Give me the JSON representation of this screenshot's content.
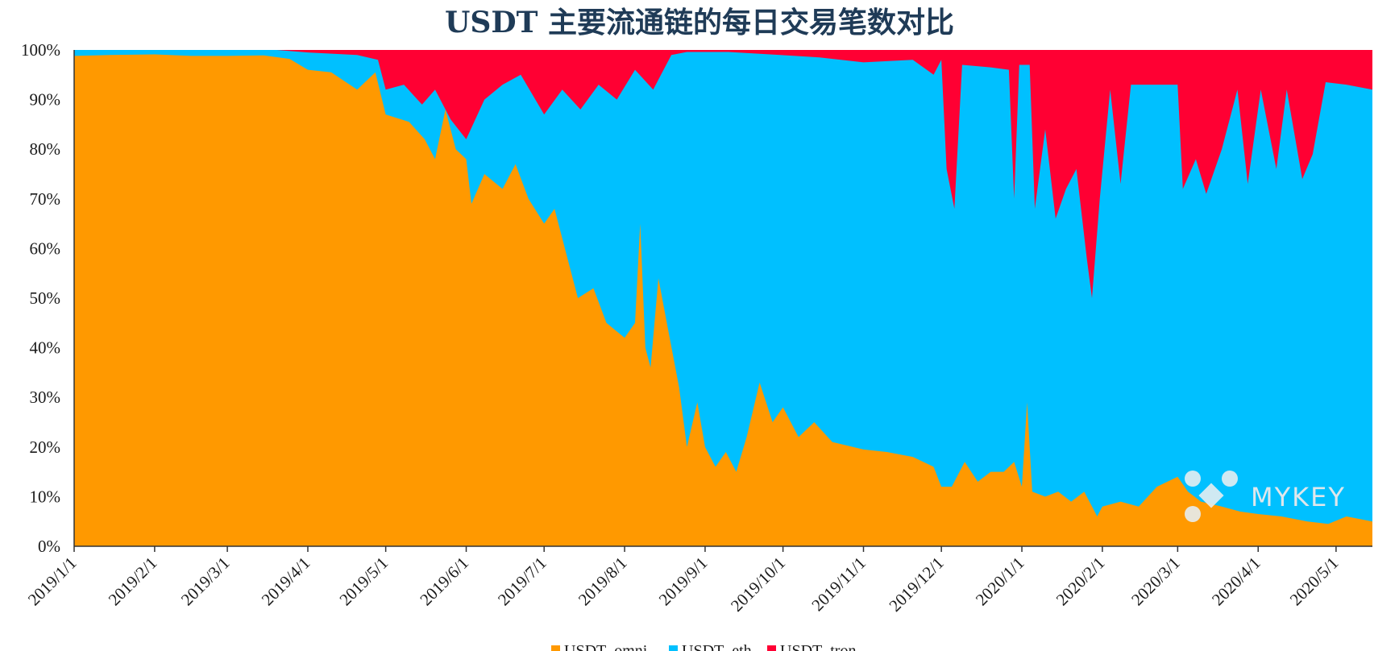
{
  "chart_data": {
    "type": "area",
    "stacked": true,
    "normalized": true,
    "title": "USDT 主要流通链的每日交易笔数对比",
    "xlabel": "",
    "ylabel": "",
    "ylim": [
      0,
      100
    ],
    "xlim": [
      "2019-01-01",
      "2020-05-15"
    ],
    "y_ticks": [
      "0%",
      "10%",
      "20%",
      "30%",
      "40%",
      "50%",
      "60%",
      "70%",
      "80%",
      "90%",
      "100%"
    ],
    "x_ticks": [
      {
        "date": "2019-01-01",
        "label": "2019/1/1"
      },
      {
        "date": "2019-02-01",
        "label": "2019/2/1"
      },
      {
        "date": "2019-03-01",
        "label": "2019/3/1"
      },
      {
        "date": "2019-04-01",
        "label": "2019/4/1"
      },
      {
        "date": "2019-05-01",
        "label": "2019/5/1"
      },
      {
        "date": "2019-06-01",
        "label": "2019/6/1"
      },
      {
        "date": "2019-07-01",
        "label": "2019/7/1"
      },
      {
        "date": "2019-08-01",
        "label": "2019/8/1"
      },
      {
        "date": "2019-09-01",
        "label": "2019/9/1"
      },
      {
        "date": "2019-10-01",
        "label": "2019/10/1"
      },
      {
        "date": "2019-11-01",
        "label": "2019/11/1"
      },
      {
        "date": "2019-12-01",
        "label": "2019/12/1"
      },
      {
        "date": "2020-01-01",
        "label": "2020/1/1"
      },
      {
        "date": "2020-02-01",
        "label": "2020/2/1"
      },
      {
        "date": "2020-03-01",
        "label": "2020/3/1"
      },
      {
        "date": "2020-04-01",
        "label": "2020/4/1"
      },
      {
        "date": "2020-05-01",
        "label": "2020/5/1"
      }
    ],
    "legend_placement": "bottom-center",
    "series": [
      {
        "name": "USDT_omni",
        "color": "#ff9900",
        "points": [
          [
            "2019-01-01",
            98.8
          ],
          [
            "2019-01-15",
            99.0
          ],
          [
            "2019-02-01",
            99.1
          ],
          [
            "2019-02-15",
            98.8
          ],
          [
            "2019-03-01",
            98.8
          ],
          [
            "2019-03-15",
            98.9
          ],
          [
            "2019-03-25",
            98.2
          ],
          [
            "2019-04-01",
            96.0
          ],
          [
            "2019-04-10",
            95.5
          ],
          [
            "2019-04-20",
            92.0
          ],
          [
            "2019-04-27",
            95.5
          ],
          [
            "2019-05-01",
            87.0
          ],
          [
            "2019-05-10",
            85.5
          ],
          [
            "2019-05-16",
            82.0
          ],
          [
            "2019-05-20",
            78.0
          ],
          [
            "2019-05-24",
            88.0
          ],
          [
            "2019-05-28",
            80.0
          ],
          [
            "2019-06-01",
            78.0
          ],
          [
            "2019-06-03",
            69.0
          ],
          [
            "2019-06-08",
            75.0
          ],
          [
            "2019-06-15",
            72.0
          ],
          [
            "2019-06-20",
            77.0
          ],
          [
            "2019-06-25",
            70.0
          ],
          [
            "2019-07-01",
            65.0
          ],
          [
            "2019-07-05",
            68.0
          ],
          [
            "2019-07-10",
            58.0
          ],
          [
            "2019-07-14",
            50.0
          ],
          [
            "2019-07-20",
            52.0
          ],
          [
            "2019-07-25",
            45.0
          ],
          [
            "2019-08-01",
            42.0
          ],
          [
            "2019-08-05",
            45.0
          ],
          [
            "2019-08-07",
            65.0
          ],
          [
            "2019-08-09",
            40.0
          ],
          [
            "2019-08-11",
            36.0
          ],
          [
            "2019-08-14",
            54.0
          ],
          [
            "2019-08-18",
            43.0
          ],
          [
            "2019-08-22",
            32.0
          ],
          [
            "2019-08-25",
            20.0
          ],
          [
            "2019-08-29",
            29.0
          ],
          [
            "2019-09-01",
            20.0
          ],
          [
            "2019-09-05",
            16.0
          ],
          [
            "2019-09-09",
            19.0
          ],
          [
            "2019-09-13",
            15.0
          ],
          [
            "2019-09-17",
            22.0
          ],
          [
            "2019-09-22",
            33.0
          ],
          [
            "2019-09-27",
            25.0
          ],
          [
            "2019-10-01",
            28.0
          ],
          [
            "2019-10-07",
            22.0
          ],
          [
            "2019-10-13",
            25.0
          ],
          [
            "2019-10-20",
            21.0
          ],
          [
            "2019-11-01",
            19.5
          ],
          [
            "2019-11-10",
            19.0
          ],
          [
            "2019-11-20",
            18.0
          ],
          [
            "2019-11-28",
            16.0
          ],
          [
            "2019-12-01",
            12.0
          ],
          [
            "2019-12-05",
            12.0
          ],
          [
            "2019-12-10",
            17.0
          ],
          [
            "2019-12-15",
            13.0
          ],
          [
            "2019-12-20",
            15.0
          ],
          [
            "2019-12-25",
            15.0
          ],
          [
            "2019-12-29",
            17.0
          ],
          [
            "2020-01-01",
            12.0
          ],
          [
            "2020-01-03",
            29.0
          ],
          [
            "2020-01-05",
            11.0
          ],
          [
            "2020-01-10",
            10.0
          ],
          [
            "2020-01-15",
            11.0
          ],
          [
            "2020-01-20",
            9.0
          ],
          [
            "2020-01-25",
            11.0
          ],
          [
            "2020-01-30",
            6.0
          ],
          [
            "2020-02-01",
            8.0
          ],
          [
            "2020-02-08",
            9.0
          ],
          [
            "2020-02-15",
            8.0
          ],
          [
            "2020-02-22",
            12.0
          ],
          [
            "2020-03-01",
            14.0
          ],
          [
            "2020-03-05",
            11.0
          ],
          [
            "2020-03-10",
            9.0
          ],
          [
            "2020-03-18",
            8.0
          ],
          [
            "2020-03-25",
            7.0
          ],
          [
            "2020-04-01",
            6.5
          ],
          [
            "2020-04-10",
            6.0
          ],
          [
            "2020-04-20",
            5.0
          ],
          [
            "2020-04-28",
            4.5
          ],
          [
            "2020-05-05",
            6.0
          ],
          [
            "2020-05-15",
            5.0
          ]
        ]
      },
      {
        "name": "USDT_eth",
        "color": "#00c0ff",
        "points": [
          [
            "2019-01-01",
            100
          ],
          [
            "2019-02-01",
            100
          ],
          [
            "2019-03-01",
            100
          ],
          [
            "2019-03-20",
            100
          ],
          [
            "2019-04-01",
            99.5
          ],
          [
            "2019-04-20",
            99.0
          ],
          [
            "2019-04-28",
            98.0
          ],
          [
            "2019-05-01",
            92.0
          ],
          [
            "2019-05-08",
            93.0
          ],
          [
            "2019-05-15",
            89.0
          ],
          [
            "2019-05-20",
            92.0
          ],
          [
            "2019-05-26",
            86.0
          ],
          [
            "2019-06-01",
            82.0
          ],
          [
            "2019-06-08",
            90.0
          ],
          [
            "2019-06-15",
            93.0
          ],
          [
            "2019-06-22",
            95.0
          ],
          [
            "2019-07-01",
            87.0
          ],
          [
            "2019-07-08",
            92.0
          ],
          [
            "2019-07-15",
            88.0
          ],
          [
            "2019-07-22",
            93.0
          ],
          [
            "2019-07-29",
            90.0
          ],
          [
            "2019-08-05",
            96.0
          ],
          [
            "2019-08-12",
            92.0
          ],
          [
            "2019-08-19",
            99.0
          ],
          [
            "2019-08-25",
            99.6
          ],
          [
            "2019-09-10",
            99.6
          ],
          [
            "2019-09-30",
            99.0
          ],
          [
            "2019-10-15",
            98.5
          ],
          [
            "2019-11-01",
            97.5
          ],
          [
            "2019-11-20",
            98.0
          ],
          [
            "2019-11-28",
            95.0
          ],
          [
            "2019-12-01",
            98.0
          ],
          [
            "2019-12-03",
            76.0
          ],
          [
            "2019-12-06",
            68.0
          ],
          [
            "2019-12-09",
            97.0
          ],
          [
            "2019-12-20",
            96.5
          ],
          [
            "2019-12-27",
            96.0
          ],
          [
            "2019-12-29",
            70.0
          ],
          [
            "2019-12-31",
            97.0
          ],
          [
            "2020-01-04",
            97.0
          ],
          [
            "2020-01-06",
            68.0
          ],
          [
            "2020-01-10",
            84.0
          ],
          [
            "2020-01-14",
            66.0
          ],
          [
            "2020-01-18",
            72.0
          ],
          [
            "2020-01-22",
            76.0
          ],
          [
            "2020-01-26",
            58.0
          ],
          [
            "2020-01-28",
            50.0
          ],
          [
            "2020-01-31",
            70.0
          ],
          [
            "2020-02-04",
            92.0
          ],
          [
            "2020-02-08",
            73.0
          ],
          [
            "2020-02-12",
            93.0
          ],
          [
            "2020-02-20",
            93.0
          ],
          [
            "2020-03-01",
            93.0
          ],
          [
            "2020-03-03",
            72.0
          ],
          [
            "2020-03-08",
            78.0
          ],
          [
            "2020-03-12",
            71.0
          ],
          [
            "2020-03-18",
            80.0
          ],
          [
            "2020-03-24",
            92.0
          ],
          [
            "2020-03-28",
            73.0
          ],
          [
            "2020-04-02",
            92.0
          ],
          [
            "2020-04-08",
            76.0
          ],
          [
            "2020-04-12",
            92.0
          ],
          [
            "2020-04-18",
            74.0
          ],
          [
            "2020-04-22",
            79.0
          ],
          [
            "2020-04-27",
            93.5
          ],
          [
            "2020-05-05",
            93.0
          ],
          [
            "2020-05-15",
            92.0
          ]
        ]
      },
      {
        "name": "USDT_tron",
        "color": "#ff0033",
        "points": [
          [
            "2019-01-01",
            100
          ],
          [
            "2020-05-15",
            100
          ]
        ]
      }
    ],
    "watermark": "MYKEY"
  }
}
